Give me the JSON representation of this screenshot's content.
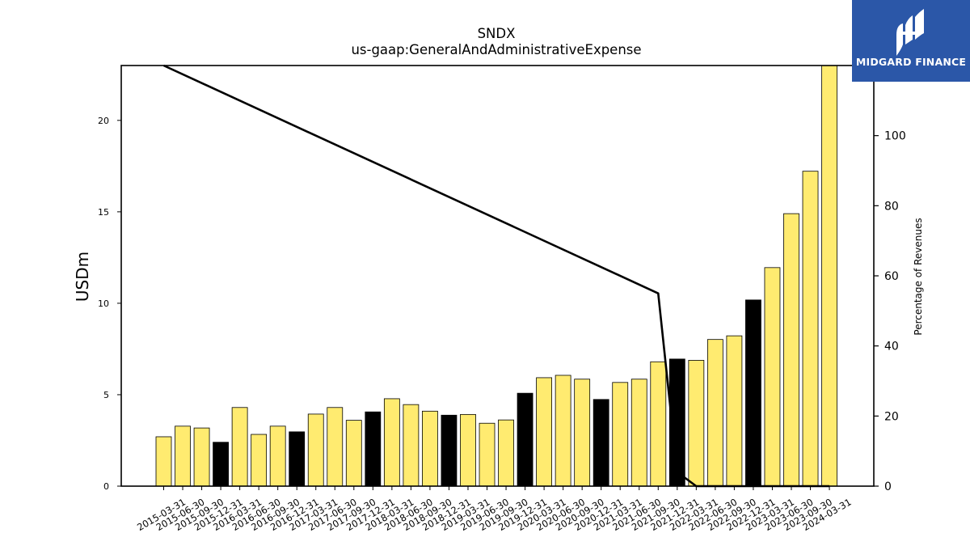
{
  "title": {
    "line1": "SNDX",
    "line2": "us-gaap:GeneralAndAdministrativeExpense"
  },
  "logo": {
    "text": "MIDGARD FINANCE",
    "icon": "midgard-logo-icon",
    "background": "#2b57a8"
  },
  "colors": {
    "bar_yellow": "#ffeb70",
    "bar_black": "#000000",
    "line": "#000000"
  },
  "chart_data": {
    "type": "bar",
    "title": "SNDX",
    "subtitle": "us-gaap:GeneralAndAdministrativeExpense",
    "ylabel": "USDm",
    "y2label": "Percentage of Revenues",
    "ylim": [
      0,
      23
    ],
    "y2lim": [
      0,
      120
    ],
    "yticks": [
      0,
      5,
      10,
      15,
      20
    ],
    "y2ticks": [
      0,
      20,
      40,
      60,
      80,
      100
    ],
    "grid": false,
    "categories": [
      "2015-03-31",
      "2015-06-30",
      "2015-09-30",
      "2015-12-31",
      "2016-03-31",
      "2016-06-30",
      "2016-09-30",
      "2016-12-31",
      "2017-03-31",
      "2017-06-30",
      "2017-09-30",
      "2017-12-31",
      "2018-03-31",
      "2018-06-30",
      "2018-09-30",
      "2018-12-31",
      "2019-03-31",
      "2019-06-30",
      "2019-09-30",
      "2019-12-31",
      "2020-03-31",
      "2020-06-30",
      "2020-09-30",
      "2020-12-31",
      "2021-03-31",
      "2021-06-30",
      "2021-09-30",
      "2021-12-31",
      "2022-03-31",
      "2022-06-30",
      "2022-09-30",
      "2022-12-31",
      "2023-03-31",
      "2023-06-30",
      "2023-09-30",
      "2024-03-31"
    ],
    "values": [
      2.7,
      3.28,
      3.18,
      2.4,
      4.3,
      2.83,
      3.28,
      2.97,
      3.94,
      4.3,
      3.6,
      4.06,
      4.78,
      4.46,
      4.1,
      3.88,
      3.92,
      3.44,
      3.62,
      5.08,
      5.93,
      6.06,
      5.85,
      4.74,
      5.67,
      5.85,
      6.8,
      6.95,
      6.88,
      8.02,
      8.22,
      10.18,
      11.95,
      14.9,
      17.22,
      23.0
    ],
    "bar_colors": [
      "yellow",
      "yellow",
      "yellow",
      "black",
      "yellow",
      "yellow",
      "yellow",
      "black",
      "yellow",
      "yellow",
      "yellow",
      "black",
      "yellow",
      "yellow",
      "yellow",
      "black",
      "yellow",
      "yellow",
      "yellow",
      "black",
      "yellow",
      "yellow",
      "yellow",
      "black",
      "yellow",
      "yellow",
      "yellow",
      "black",
      "yellow",
      "yellow",
      "yellow",
      "black",
      "yellow",
      "yellow",
      "yellow",
      "yellow"
    ],
    "series": [
      {
        "axis": "right",
        "type": "line",
        "x": [
          "2015-03-31",
          "2021-09-30",
          "2021-12-31",
          "2022-03-31",
          "2022-06-30",
          "2022-09-30",
          "2022-12-31",
          "2023-03-31",
          "2023-06-30",
          "2023-09-30",
          "2024-03-31"
        ],
        "values": [
          120,
          55,
          4,
          0,
          0,
          0,
          0,
          0,
          0,
          0,
          0
        ]
      }
    ]
  }
}
